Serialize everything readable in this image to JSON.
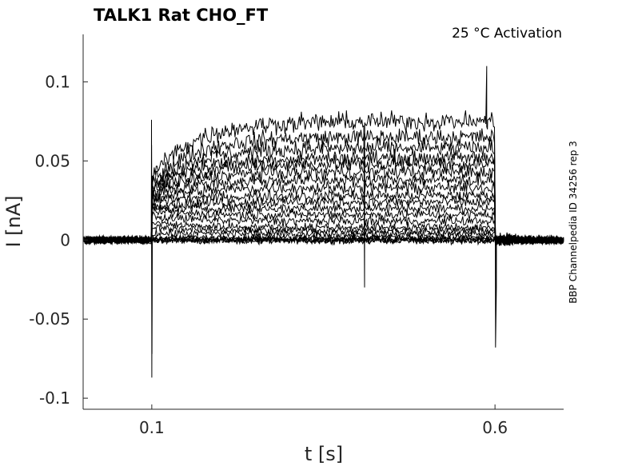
{
  "chart_data": {
    "type": "line",
    "title": "TALK1  Rat  CHO_FT",
    "annotation": "25 °C  Activation",
    "side_label": "BBP Channelpedia ID 34256 rep 3",
    "xlabel": "t [s]",
    "ylabel": "I [nA]",
    "xlim": [
      0.0,
      0.7
    ],
    "ylim": [
      -0.107,
      0.13
    ],
    "x_ticks": [
      0.1,
      0.6
    ],
    "x_tick_labels": [
      "0.1",
      "0.6"
    ],
    "y_ticks": [
      -0.1,
      -0.05,
      0,
      0.05,
      0.1
    ],
    "y_tick_labels": [
      "-0.1",
      "-0.05",
      "0",
      "0.05",
      "0.1"
    ],
    "grid": false,
    "line_color": "#000000",
    "stimulus": {
      "on": 0.1,
      "off": 0.6
    },
    "trace_count": 21,
    "steady_state_levels": [
      0.0,
      0.0,
      0.0,
      0.0,
      0.002,
      0.004,
      0.006,
      0.008,
      0.012,
      0.016,
      0.02,
      0.024,
      0.028,
      0.033,
      0.038,
      0.043,
      0.048,
      0.052,
      0.058,
      0.065,
      0.075
    ],
    "onset_levels_at_0.1s": [
      0.0,
      0.0,
      0.0,
      0.0,
      0.0,
      0.004,
      0.008,
      0.011,
      0.015,
      0.018,
      0.02,
      0.022,
      0.024,
      0.026,
      0.028,
      0.029,
      0.031,
      0.033,
      0.035,
      0.037,
      0.04
    ],
    "transients": {
      "onset_spike_max": 0.076,
      "onset_spike_min": -0.087,
      "offset_spike_max": 0.11,
      "offset_spike_min": -0.068,
      "mid_dip_time": 0.41,
      "mid_dip_min": -0.03
    }
  }
}
